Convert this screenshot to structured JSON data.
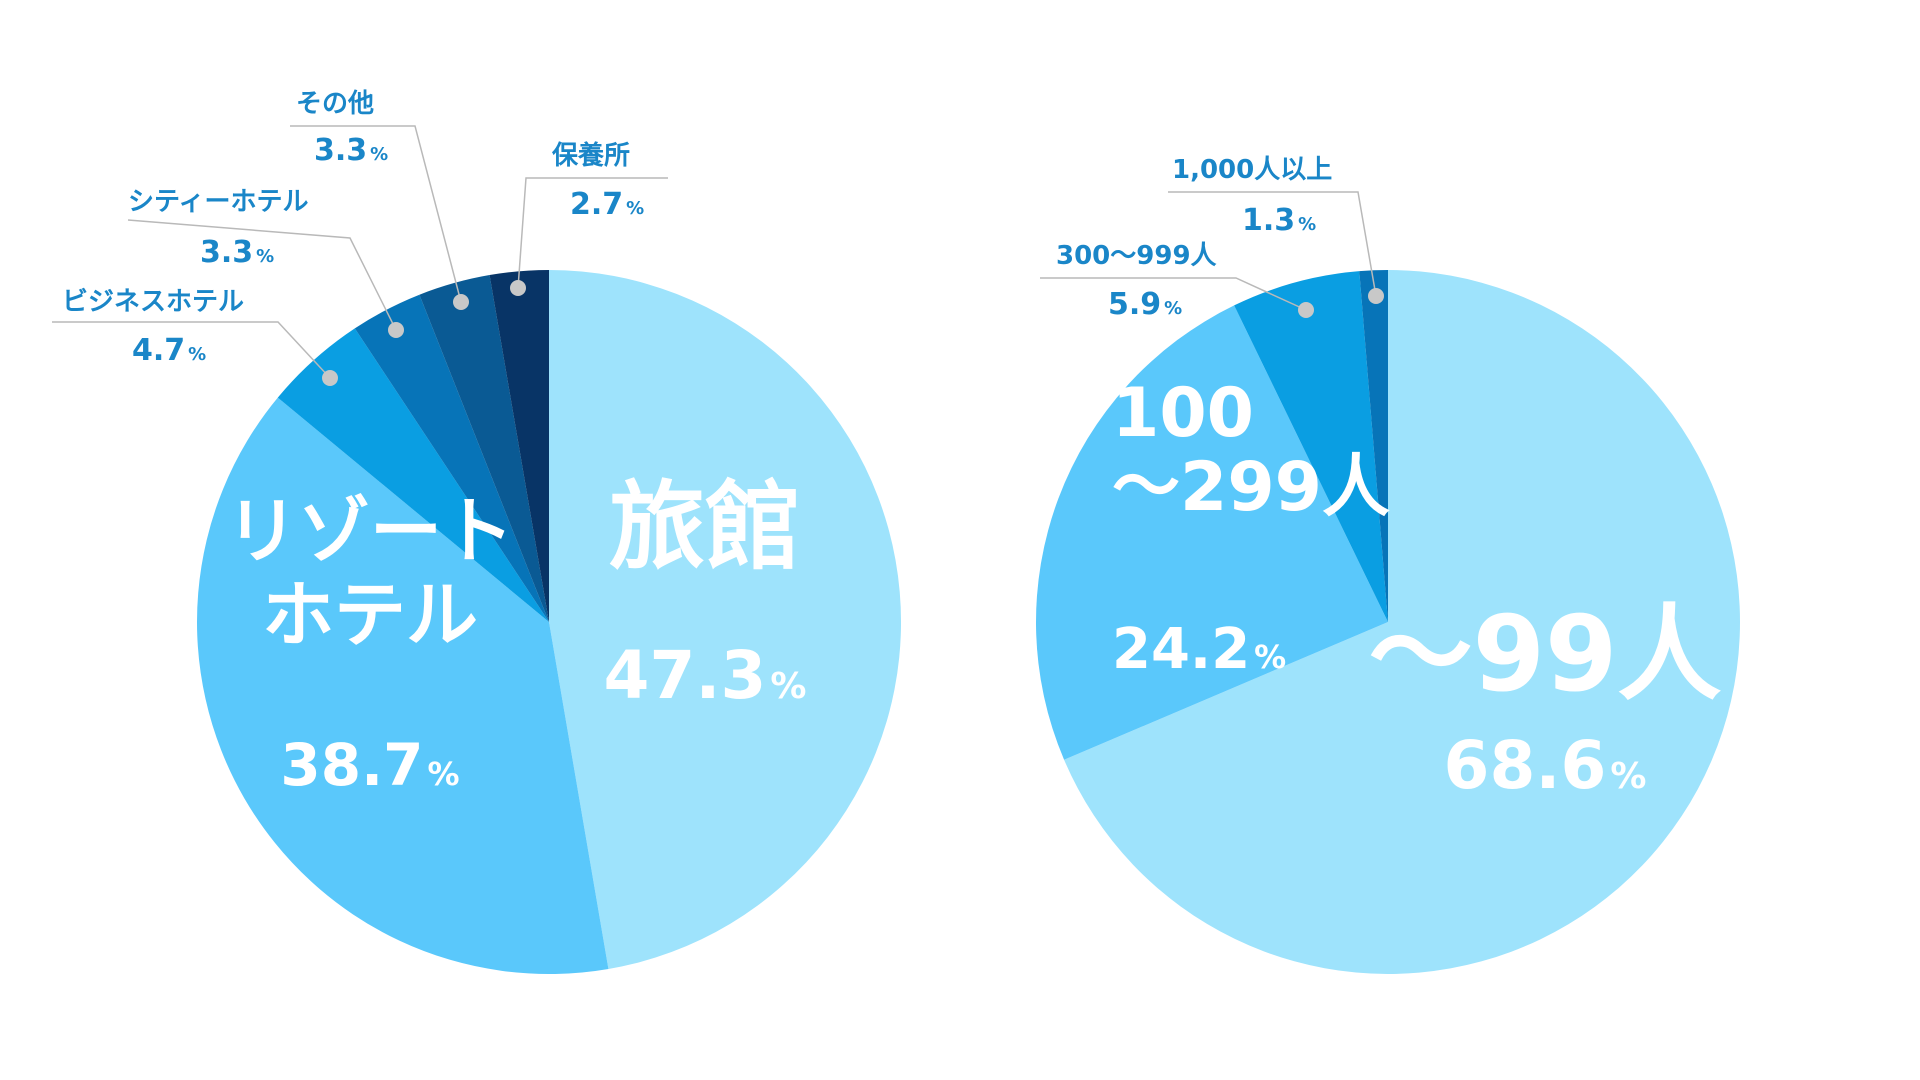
{
  "chart_data": [
    {
      "type": "pie",
      "start": "12 o'clock",
      "direction": "clockwise",
      "slices": [
        {
          "name": "旅館",
          "value": 47.3,
          "value_text": "47.3",
          "unit": "%",
          "color": "#9ee3fc",
          "label": "inside"
        },
        {
          "name": "リゾートホテル",
          "label_lines": [
            "リゾート",
            "ホテル"
          ],
          "value": 38.7,
          "value_text": "38.7",
          "unit": "%",
          "color": "#5ac8fb",
          "label": "inside"
        },
        {
          "name": "ビジネスホテル",
          "value": 4.7,
          "value_text": "4.7",
          "unit": "%",
          "color": "#0a9ee2",
          "label": "outside"
        },
        {
          "name": "シティーホテル",
          "value": 3.3,
          "value_text": "3.3",
          "unit": "%",
          "color": "#0774b8",
          "label": "outside"
        },
        {
          "name": "その他",
          "value": 3.3,
          "value_text": "3.3",
          "unit": "%",
          "color": "#0a5a94",
          "label": "outside"
        },
        {
          "name": "保養所",
          "value": 2.7,
          "value_text": "2.7",
          "unit": "%",
          "color": "#083466",
          "label": "outside"
        }
      ]
    },
    {
      "type": "pie",
      "start": "12 o'clock",
      "direction": "clockwise",
      "slices": [
        {
          "name": "〜99人",
          "label_lines": [
            "〜99人"
          ],
          "value": 68.6,
          "value_text": "68.6",
          "unit": "%",
          "color": "#9ee3fc",
          "label": "inside"
        },
        {
          "name": "100〜299人",
          "label_lines": [
            "100",
            "〜299人"
          ],
          "value": 24.2,
          "value_text": "24.2",
          "unit": "%",
          "color": "#5ac8fb",
          "label": "inside"
        },
        {
          "name": "300〜999人",
          "value": 5.9,
          "value_text": "5.9",
          "unit": "%",
          "color": "#0a9ee2",
          "label": "outside"
        },
        {
          "name": "1,000人以上",
          "value": 1.3,
          "value_text": "1.3",
          "unit": "%",
          "color": "#0774b8",
          "label": "outside"
        }
      ]
    }
  ]
}
